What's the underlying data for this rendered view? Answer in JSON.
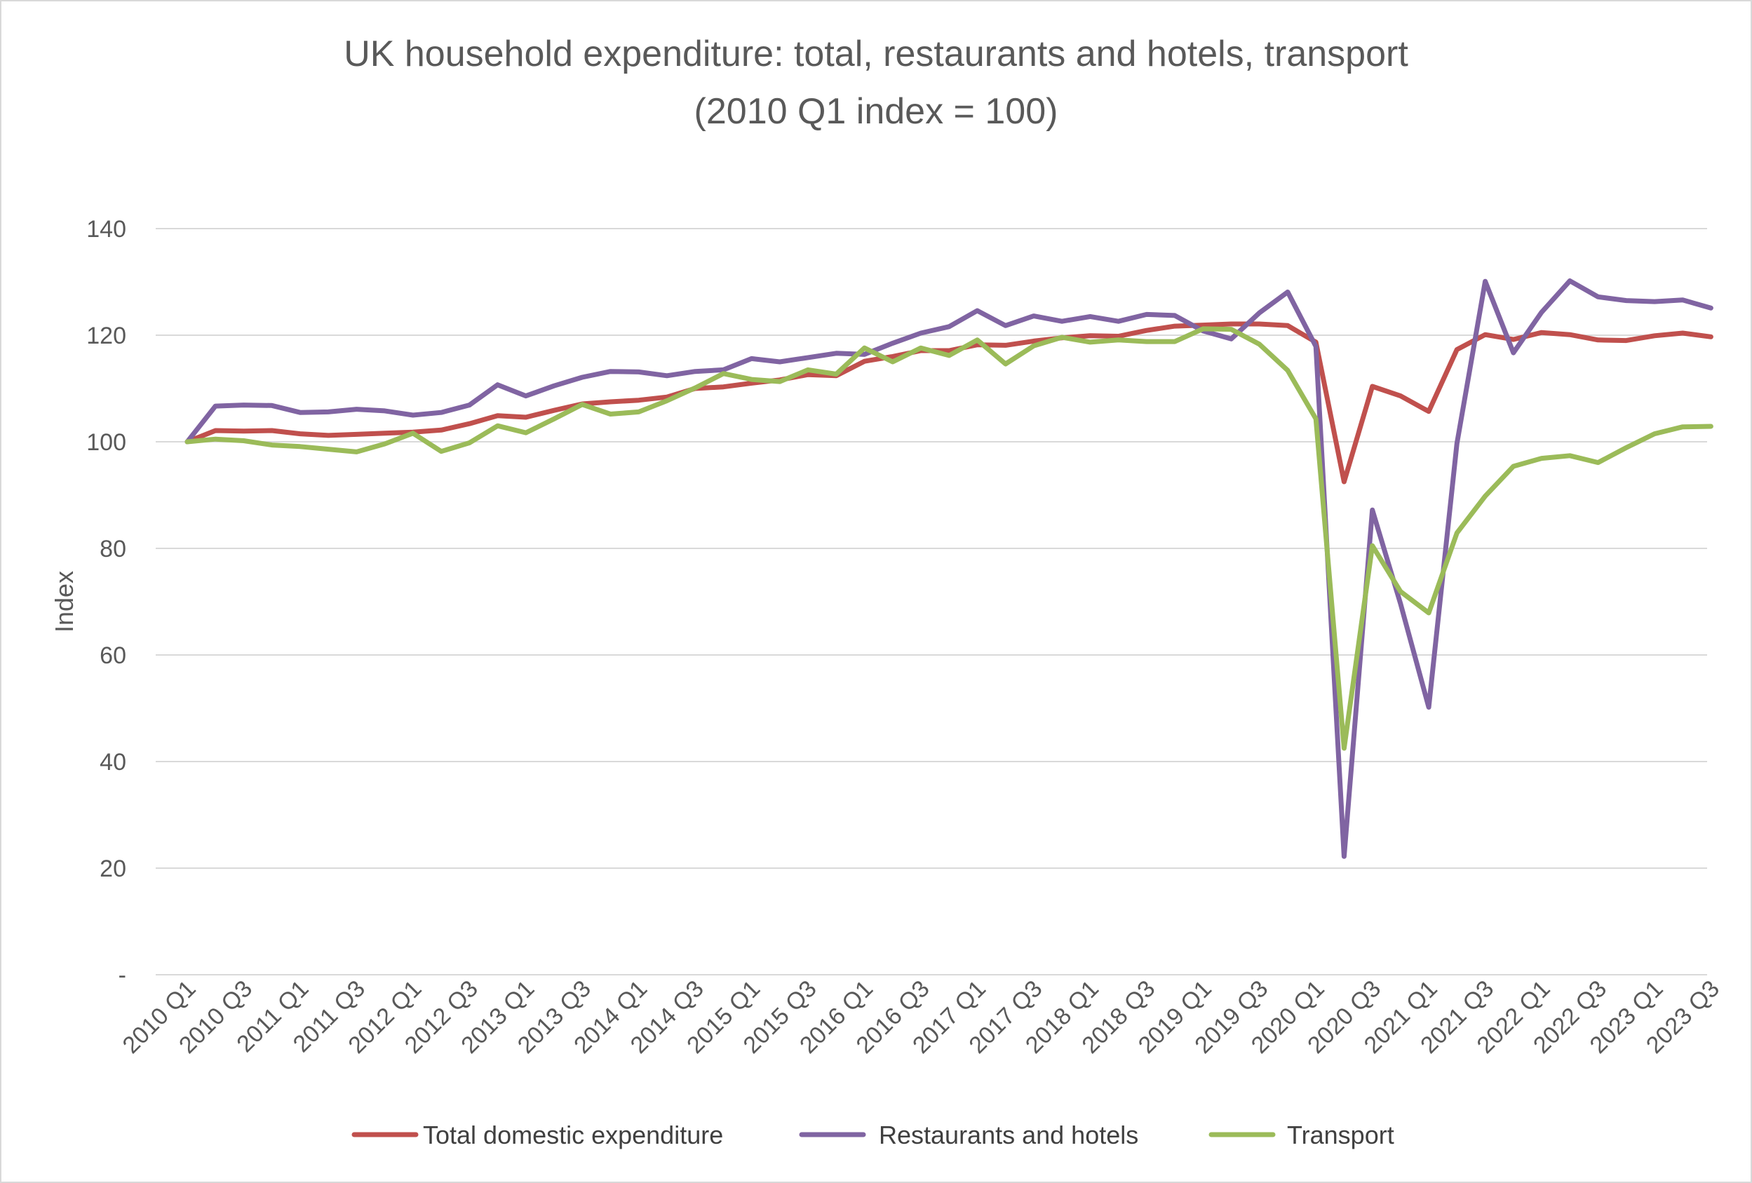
{
  "chart_data": {
    "type": "line",
    "title": "UK household expenditure: total, restaurants and hotels, transport",
    "subtitle": "(2010 Q1 index = 100)",
    "xlabel": "",
    "ylabel": "Index",
    "ylim": [
      0,
      140
    ],
    "yticks": [
      0,
      20,
      40,
      60,
      80,
      100,
      120,
      140
    ],
    "ytick_labels": [
      "-",
      "20",
      "40",
      "60",
      "80",
      "100",
      "120",
      "140"
    ],
    "grid": true,
    "legend_position": "bottom",
    "categories": [
      "2010 Q1",
      "2010 Q2",
      "2010 Q3",
      "2010 Q4",
      "2011 Q1",
      "2011 Q2",
      "2011 Q3",
      "2011 Q4",
      "2012 Q1",
      "2012 Q2",
      "2012 Q3",
      "2012 Q4",
      "2013 Q1",
      "2013 Q2",
      "2013 Q3",
      "2013 Q4",
      "2014 Q1",
      "2014 Q2",
      "2014 Q3",
      "2014 Q4",
      "2015 Q1",
      "2015 Q2",
      "2015 Q3",
      "2015 Q4",
      "2016 Q1",
      "2016 Q2",
      "2016 Q3",
      "2016 Q4",
      "2017 Q1",
      "2017 Q2",
      "2017 Q3",
      "2017 Q4",
      "2018 Q1",
      "2018 Q2",
      "2018 Q3",
      "2018 Q4",
      "2019 Q1",
      "2019 Q2",
      "2019 Q3",
      "2019 Q4",
      "2020 Q1",
      "2020 Q2",
      "2020 Q3",
      "2020 Q4",
      "2021 Q1",
      "2021 Q2",
      "2021 Q3",
      "2021 Q4",
      "2022 Q1",
      "2022 Q2",
      "2022 Q3",
      "2022 Q4",
      "2023 Q1",
      "2023 Q2",
      "2023 Q3"
    ],
    "xtick_labels": [
      "2010 Q1",
      "2010 Q3",
      "2011 Q1",
      "2011 Q3",
      "2012 Q1",
      "2012 Q3",
      "2013 Q1",
      "2013 Q3",
      "2014 Q1",
      "2014 Q3",
      "2015 Q1",
      "2015 Q3",
      "2016 Q1",
      "2016 Q3",
      "2017 Q1",
      "2017 Q3",
      "2018 Q1",
      "2018 Q3",
      "2019 Q1",
      "2019 Q3",
      "2020 Q1",
      "2020 Q3",
      "2021 Q1",
      "2021 Q3",
      "2022 Q1",
      "2022 Q3",
      "2023 Q1",
      "2023 Q3"
    ],
    "series": [
      {
        "name": "Total domestic expenditure",
        "color": "#c0504d",
        "values": [
          100.0,
          102.1,
          102.0,
          102.1,
          101.5,
          101.2,
          101.4,
          101.6,
          101.8,
          102.2,
          103.4,
          104.9,
          104.6,
          105.9,
          107.1,
          107.5,
          107.8,
          108.4,
          110.0,
          110.3,
          111.0,
          111.6,
          112.6,
          112.4,
          115.1,
          116.0,
          117.1,
          117.1,
          118.2,
          118.1,
          118.9,
          119.5,
          119.9,
          119.8,
          120.9,
          121.7,
          121.9,
          122.1,
          122.1,
          121.8,
          118.7,
          92.5,
          110.4,
          108.6,
          105.7,
          117.3,
          120.1,
          119.2,
          120.5,
          120.1,
          119.1,
          119.0,
          119.9,
          120.4,
          119.7
        ]
      },
      {
        "name": "Restaurants and hotels",
        "color": "#8064a2",
        "values": [
          100.0,
          106.7,
          106.9,
          106.8,
          105.5,
          105.6,
          106.1,
          105.8,
          105.0,
          105.5,
          106.9,
          110.7,
          108.6,
          110.5,
          112.1,
          113.2,
          113.1,
          112.4,
          113.2,
          113.5,
          115.6,
          115.0,
          115.8,
          116.6,
          116.4,
          118.5,
          120.4,
          121.6,
          124.6,
          121.8,
          123.6,
          122.6,
          123.5,
          122.6,
          123.9,
          123.7,
          120.8,
          119.3,
          124.2,
          128.1,
          117.9,
          22.2,
          87.2,
          69.6,
          50.2,
          99.7,
          130.1,
          116.7,
          124.3,
          130.2,
          127.2,
          126.5,
          126.3,
          126.6,
          125.1
        ]
      },
      {
        "name": "Transport",
        "color": "#9bbb59",
        "values": [
          100.0,
          100.5,
          100.2,
          99.4,
          99.1,
          98.6,
          98.1,
          99.6,
          101.6,
          98.2,
          99.8,
          103.0,
          101.7,
          104.3,
          107.0,
          105.2,
          105.6,
          107.7,
          110.1,
          112.8,
          111.7,
          111.3,
          113.5,
          112.7,
          117.6,
          115.0,
          117.6,
          116.2,
          119.1,
          114.6,
          118.0,
          119.6,
          118.7,
          119.1,
          118.8,
          118.8,
          121.2,
          121.1,
          118.3,
          113.4,
          104.3,
          42.5,
          80.5,
          71.9,
          67.9,
          82.9,
          89.8,
          95.4,
          96.9,
          97.4,
          96.1,
          98.9,
          101.5,
          102.8,
          102.9
        ]
      }
    ]
  }
}
